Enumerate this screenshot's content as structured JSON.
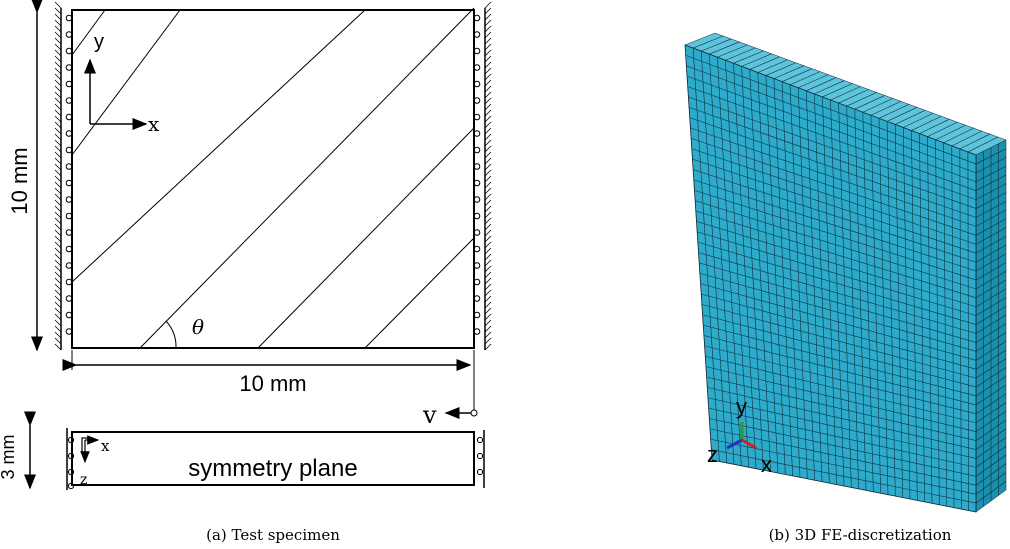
{
  "panels": [
    {
      "caption": "(a) Test specimen",
      "axis_y": "y",
      "axis_x": "x",
      "height_label": "10 mm",
      "angle_label": "θ",
      "width_label": "10 mm",
      "velocity_label": "v",
      "thickness_label": "3 mm",
      "side_axis_x": "x",
      "side_axis_z": "z",
      "plane_label": "symmetry plane"
    },
    {
      "caption": "(b) 3D FE-discretization",
      "triad_y": "y",
      "triad_z": "z",
      "triad_x": "x"
    }
  ]
}
